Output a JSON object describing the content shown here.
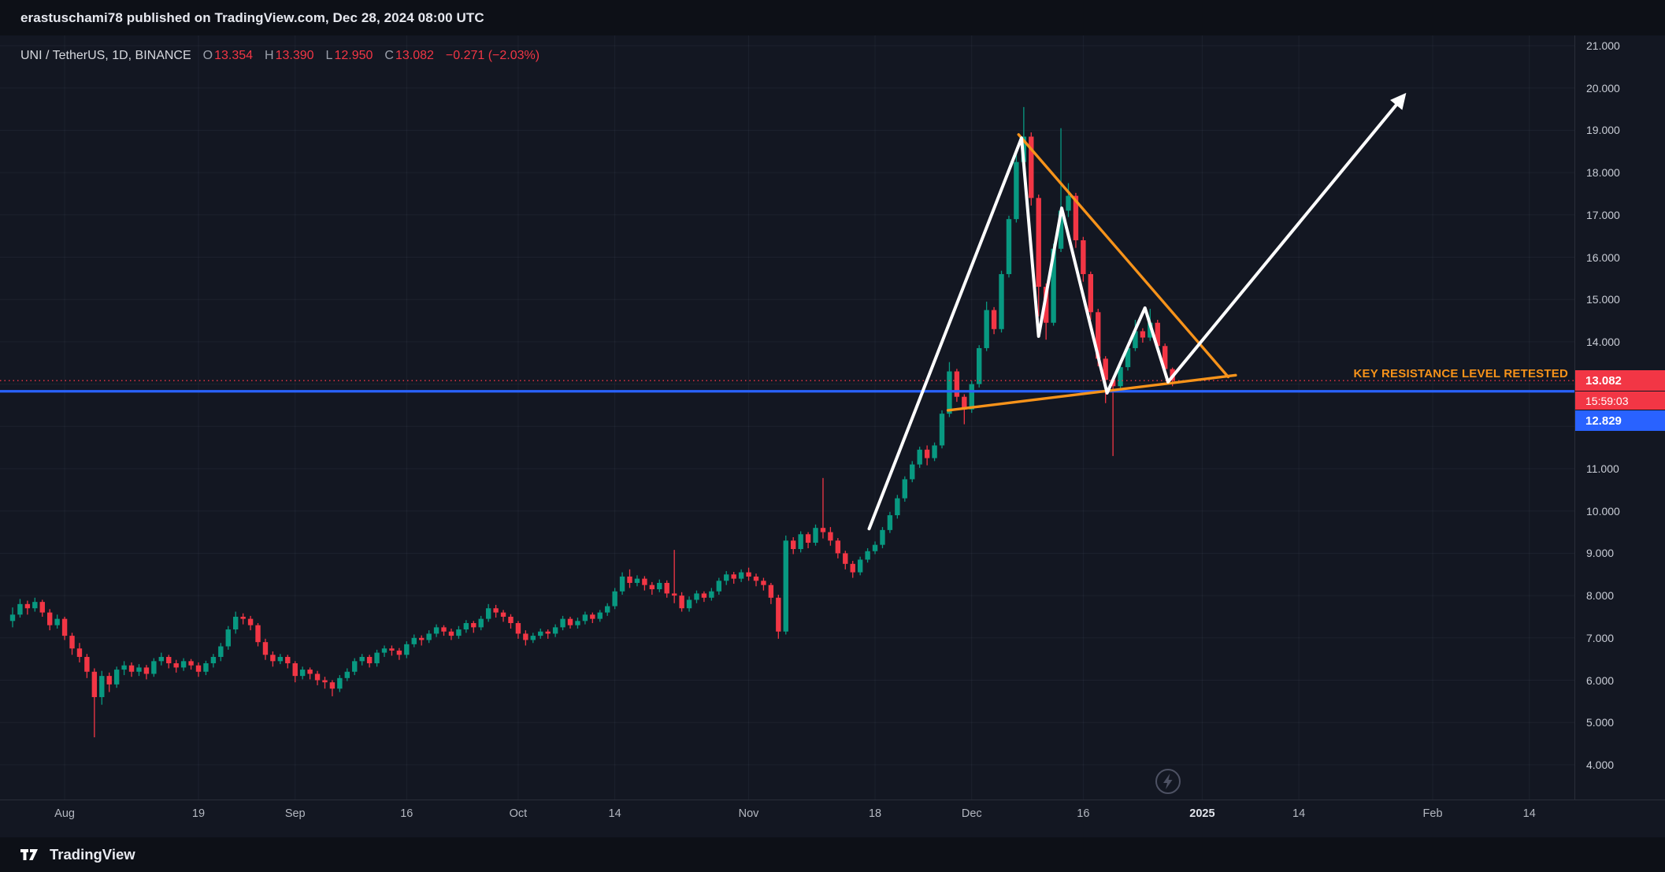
{
  "publish_bar": {
    "text": "erastuschami78 published on TradingView.com, Dec 28, 2024 08:00 UTC"
  },
  "header": {
    "symbol": "UNI / TetherUS, 1D, BINANCE",
    "ohlc": {
      "o_label": "O",
      "o": "13.354",
      "h_label": "H",
      "h": "13.390",
      "l_label": "L",
      "l": "12.950",
      "c_label": "C",
      "c": "13.082",
      "change": "−0.271 (−2.03%)"
    }
  },
  "annotations": {
    "resistance_text": "KEY RESISTANCE LEVEL RETESTED"
  },
  "price_scale": {
    "current_price_badge": "13.082",
    "countdown_badge": "15:59:03",
    "level_badge": "12.829",
    "labels": [
      {
        "text": "21.000",
        "price": 21
      },
      {
        "text": "20.000",
        "price": 20
      },
      {
        "text": "19.000",
        "price": 19
      },
      {
        "text": "18.000",
        "price": 18
      },
      {
        "text": "17.000",
        "price": 17
      },
      {
        "text": "16.000",
        "price": 16
      },
      {
        "text": "15.000",
        "price": 15
      },
      {
        "text": "14.000",
        "price": 14
      },
      {
        "text": "11.000",
        "price": 11
      },
      {
        "text": "10.000",
        "price": 10
      },
      {
        "text": "9.000",
        "price": 9
      },
      {
        "text": "8.000",
        "price": 8
      },
      {
        "text": "7.000",
        "price": 7
      },
      {
        "text": "6.000",
        "price": 6
      },
      {
        "text": "5.000",
        "price": 5
      },
      {
        "text": "4.000",
        "price": 4
      }
    ]
  },
  "footer": {
    "brand": "TradingView"
  },
  "chart_data": {
    "type": "candlestick",
    "title": "UNI / TetherUS, 1D, BINANCE",
    "interval": "1D",
    "exchange": "BINANCE",
    "start_date": "2024-07-25",
    "ylim": [
      3.2,
      21.25
    ],
    "price_gridlines": [
      4,
      5,
      6,
      7,
      8,
      9,
      10,
      11,
      12,
      13,
      14,
      15,
      16,
      17,
      18,
      19,
      20,
      21
    ],
    "time_axis": [
      {
        "text": "Aug",
        "day": 7
      },
      {
        "text": "19",
        "day": 25
      },
      {
        "text": "Sep",
        "day": 38
      },
      {
        "text": "16",
        "day": 53
      },
      {
        "text": "Oct",
        "day": 68
      },
      {
        "text": "14",
        "day": 81
      },
      {
        "text": "Nov",
        "day": 99
      },
      {
        "text": "18",
        "day": 116
      },
      {
        "text": "Dec",
        "day": 129
      },
      {
        "text": "16",
        "day": 144
      },
      {
        "text": "2025",
        "day": 160,
        "year": true
      },
      {
        "text": "14",
        "day": 173
      },
      {
        "text": "Feb",
        "day": 191
      },
      {
        "text": "14",
        "day": 204
      }
    ],
    "candle_format": [
      "open",
      "high",
      "low",
      "close"
    ],
    "candles": [
      [
        7.4,
        7.72,
        7.25,
        7.55
      ],
      [
        7.55,
        7.92,
        7.48,
        7.8
      ],
      [
        7.8,
        7.88,
        7.55,
        7.7
      ],
      [
        7.7,
        7.95,
        7.62,
        7.85
      ],
      [
        7.85,
        7.9,
        7.5,
        7.6
      ],
      [
        7.6,
        7.68,
        7.18,
        7.3
      ],
      [
        7.3,
        7.55,
        7.22,
        7.45
      ],
      [
        7.45,
        7.5,
        6.95,
        7.05
      ],
      [
        7.05,
        7.12,
        6.6,
        6.75
      ],
      [
        6.75,
        6.88,
        6.42,
        6.55
      ],
      [
        6.55,
        6.62,
        6.05,
        6.2
      ],
      [
        6.2,
        6.28,
        4.65,
        5.6
      ],
      [
        5.6,
        6.22,
        5.42,
        6.1
      ],
      [
        6.1,
        6.18,
        5.72,
        5.9
      ],
      [
        5.9,
        6.32,
        5.82,
        6.25
      ],
      [
        6.25,
        6.45,
        6.12,
        6.35
      ],
      [
        6.35,
        6.42,
        6.08,
        6.2
      ],
      [
        6.2,
        6.38,
        6.1,
        6.3
      ],
      [
        6.3,
        6.36,
        6.02,
        6.15
      ],
      [
        6.15,
        6.52,
        6.08,
        6.45
      ],
      [
        6.45,
        6.65,
        6.35,
        6.55
      ],
      [
        6.55,
        6.6,
        6.28,
        6.4
      ],
      [
        6.4,
        6.48,
        6.18,
        6.3
      ],
      [
        6.3,
        6.52,
        6.22,
        6.45
      ],
      [
        6.45,
        6.5,
        6.25,
        6.35
      ],
      [
        6.35,
        6.42,
        6.08,
        6.2
      ],
      [
        6.2,
        6.46,
        6.12,
        6.4
      ],
      [
        6.4,
        6.62,
        6.3,
        6.55
      ],
      [
        6.55,
        6.88,
        6.45,
        6.8
      ],
      [
        6.8,
        7.28,
        6.72,
        7.2
      ],
      [
        7.2,
        7.62,
        7.1,
        7.5
      ],
      [
        7.5,
        7.58,
        7.32,
        7.45
      ],
      [
        7.45,
        7.52,
        7.18,
        7.3
      ],
      [
        7.3,
        7.35,
        6.8,
        6.9
      ],
      [
        6.9,
        6.98,
        6.48,
        6.6
      ],
      [
        6.6,
        6.68,
        6.32,
        6.45
      ],
      [
        6.45,
        6.62,
        6.38,
        6.55
      ],
      [
        6.55,
        6.6,
        6.28,
        6.4
      ],
      [
        6.4,
        6.45,
        5.95,
        6.1
      ],
      [
        6.1,
        6.32,
        6.02,
        6.25
      ],
      [
        6.25,
        6.3,
        6.02,
        6.15
      ],
      [
        6.15,
        6.22,
        5.88,
        6.0
      ],
      [
        6.0,
        6.08,
        5.8,
        5.95
      ],
      [
        5.95,
        6.0,
        5.62,
        5.8
      ],
      [
        5.8,
        6.12,
        5.72,
        6.05
      ],
      [
        6.05,
        6.28,
        5.98,
        6.2
      ],
      [
        6.2,
        6.52,
        6.12,
        6.45
      ],
      [
        6.45,
        6.62,
        6.35,
        6.55
      ],
      [
        6.55,
        6.6,
        6.3,
        6.4
      ],
      [
        6.4,
        6.72,
        6.32,
        6.65
      ],
      [
        6.65,
        6.82,
        6.55,
        6.75
      ],
      [
        6.75,
        6.82,
        6.58,
        6.7
      ],
      [
        6.7,
        6.76,
        6.48,
        6.6
      ],
      [
        6.6,
        6.92,
        6.52,
        6.85
      ],
      [
        6.85,
        7.08,
        6.78,
        7.0
      ],
      [
        7.0,
        7.06,
        6.82,
        6.95
      ],
      [
        6.95,
        7.18,
        6.88,
        7.1
      ],
      [
        7.1,
        7.32,
        7.02,
        7.25
      ],
      [
        7.25,
        7.3,
        7.05,
        7.15
      ],
      [
        7.15,
        7.22,
        6.95,
        7.05
      ],
      [
        7.05,
        7.28,
        6.98,
        7.2
      ],
      [
        7.2,
        7.42,
        7.12,
        7.35
      ],
      [
        7.35,
        7.4,
        7.12,
        7.25
      ],
      [
        7.25,
        7.52,
        7.18,
        7.45
      ],
      [
        7.45,
        7.8,
        7.38,
        7.7
      ],
      [
        7.7,
        7.78,
        7.48,
        7.6
      ],
      [
        7.6,
        7.66,
        7.38,
        7.5
      ],
      [
        7.5,
        7.56,
        7.22,
        7.35
      ],
      [
        7.35,
        7.4,
        6.98,
        7.1
      ],
      [
        7.1,
        7.18,
        6.82,
        6.95
      ],
      [
        6.95,
        7.12,
        6.88,
        7.05
      ],
      [
        7.05,
        7.22,
        6.98,
        7.15
      ],
      [
        7.15,
        7.2,
        6.98,
        7.1
      ],
      [
        7.1,
        7.32,
        7.02,
        7.25
      ],
      [
        7.25,
        7.52,
        7.18,
        7.45
      ],
      [
        7.45,
        7.5,
        7.22,
        7.3
      ],
      [
        7.3,
        7.48,
        7.22,
        7.4
      ],
      [
        7.4,
        7.62,
        7.32,
        7.55
      ],
      [
        7.55,
        7.6,
        7.35,
        7.45
      ],
      [
        7.45,
        7.66,
        7.38,
        7.6
      ],
      [
        7.6,
        7.82,
        7.52,
        7.75
      ],
      [
        7.75,
        8.18,
        7.68,
        8.1
      ],
      [
        8.1,
        8.55,
        8.02,
        8.45
      ],
      [
        8.45,
        8.62,
        8.18,
        8.3
      ],
      [
        8.3,
        8.48,
        8.22,
        8.4
      ],
      [
        8.4,
        8.46,
        8.12,
        8.25
      ],
      [
        8.25,
        8.32,
        8.02,
        8.15
      ],
      [
        8.15,
        8.38,
        8.08,
        8.3
      ],
      [
        8.3,
        8.36,
        7.95,
        8.05
      ],
      [
        8.05,
        9.08,
        7.82,
        8.0
      ],
      [
        8.0,
        8.08,
        7.62,
        7.7
      ],
      [
        7.7,
        7.98,
        7.62,
        7.9
      ],
      [
        7.9,
        8.12,
        7.82,
        8.05
      ],
      [
        8.05,
        8.1,
        7.85,
        7.95
      ],
      [
        7.95,
        8.18,
        7.88,
        8.1
      ],
      [
        8.1,
        8.42,
        8.02,
        8.35
      ],
      [
        8.35,
        8.58,
        8.25,
        8.5
      ],
      [
        8.5,
        8.56,
        8.28,
        8.4
      ],
      [
        8.4,
        8.62,
        8.32,
        8.55
      ],
      [
        8.55,
        8.66,
        8.35,
        8.45
      ],
      [
        8.45,
        8.52,
        8.22,
        8.35
      ],
      [
        8.35,
        8.42,
        8.12,
        8.25
      ],
      [
        8.25,
        8.3,
        7.8,
        7.95
      ],
      [
        7.95,
        8.02,
        6.98,
        7.15
      ],
      [
        7.15,
        9.42,
        7.08,
        9.3
      ],
      [
        9.3,
        9.38,
        8.98,
        9.1
      ],
      [
        9.1,
        9.52,
        9.02,
        9.45
      ],
      [
        9.45,
        9.5,
        9.12,
        9.25
      ],
      [
        9.25,
        9.68,
        9.18,
        9.6
      ],
      [
        9.6,
        10.78,
        9.35,
        9.5
      ],
      [
        9.5,
        9.62,
        9.18,
        9.3
      ],
      [
        9.3,
        9.36,
        8.88,
        9.0
      ],
      [
        9.0,
        9.06,
        8.62,
        8.75
      ],
      [
        8.75,
        8.82,
        8.42,
        8.55
      ],
      [
        8.55,
        8.92,
        8.48,
        8.85
      ],
      [
        8.85,
        9.12,
        8.78,
        9.05
      ],
      [
        9.05,
        9.28,
        8.98,
        9.2
      ],
      [
        9.2,
        9.62,
        9.12,
        9.55
      ],
      [
        9.55,
        9.98,
        9.48,
        9.9
      ],
      [
        9.9,
        10.38,
        9.82,
        10.3
      ],
      [
        10.3,
        10.82,
        10.22,
        10.75
      ],
      [
        10.75,
        11.18,
        10.68,
        11.1
      ],
      [
        11.1,
        11.52,
        11.02,
        11.45
      ],
      [
        11.45,
        11.55,
        11.08,
        11.25
      ],
      [
        11.25,
        11.62,
        11.18,
        11.55
      ],
      [
        11.55,
        12.38,
        11.48,
        12.3
      ],
      [
        12.3,
        13.52,
        12.22,
        13.3
      ],
      [
        13.3,
        13.36,
        12.58,
        12.7
      ],
      [
        12.7,
        12.76,
        12.05,
        12.4
      ],
      [
        12.4,
        13.08,
        12.32,
        13.0
      ],
      [
        13.0,
        13.92,
        12.92,
        13.85
      ],
      [
        13.85,
        14.95,
        13.78,
        14.75
      ],
      [
        14.75,
        14.82,
        14.18,
        14.3
      ],
      [
        14.3,
        15.68,
        14.22,
        15.6
      ],
      [
        15.6,
        16.98,
        15.52,
        16.9
      ],
      [
        16.9,
        18.55,
        16.82,
        18.25
      ],
      [
        18.25,
        19.55,
        18.02,
        18.85
      ],
      [
        18.85,
        18.95,
        17.22,
        17.4
      ],
      [
        17.4,
        17.48,
        14.6,
        15.3
      ],
      [
        15.3,
        15.38,
        14.05,
        14.45
      ],
      [
        14.45,
        16.32,
        14.38,
        16.2
      ],
      [
        16.2,
        19.05,
        16.12,
        17.1
      ],
      [
        17.1,
        17.75,
        16.95,
        17.45
      ],
      [
        17.45,
        17.52,
        16.22,
        16.4
      ],
      [
        16.4,
        16.48,
        15.42,
        15.6
      ],
      [
        15.6,
        15.66,
        14.52,
        14.7
      ],
      [
        14.7,
        14.78,
        13.42,
        13.6
      ],
      [
        13.6,
        13.66,
        12.55,
        13.1
      ],
      [
        13.1,
        13.18,
        11.3,
        12.95
      ],
      [
        12.95,
        13.48,
        12.88,
        13.4
      ],
      [
        13.4,
        13.92,
        13.32,
        13.85
      ],
      [
        13.85,
        14.52,
        13.78,
        14.25
      ],
      [
        14.25,
        14.32,
        13.98,
        14.1
      ],
      [
        14.1,
        14.78,
        14.02,
        14.45
      ],
      [
        14.45,
        14.52,
        13.78,
        13.9
      ],
      [
        13.9,
        13.96,
        13.22,
        13.354
      ],
      [
        13.354,
        13.39,
        12.95,
        13.082
      ]
    ],
    "last_price": 13.082,
    "resistance_line_price": 12.829,
    "triangle": {
      "upper": [
        [
          135.3,
          18.9
        ],
        [
          163.5,
          13.17
        ]
      ],
      "lower": [
        [
          125.8,
          12.38
        ],
        [
          164.5,
          13.21
        ]
      ]
    },
    "white_path": [
      [
        115.2,
        9.58
      ],
      [
        135.7,
        18.82
      ],
      [
        138.0,
        14.13
      ],
      [
        141.1,
        17.16
      ],
      [
        147.2,
        12.79
      ],
      [
        152.3,
        14.8
      ],
      [
        155.4,
        13.05
      ],
      [
        186.9,
        19.77
      ]
    ],
    "colors": {
      "up": "#089981",
      "down": "#f23645",
      "level_line": "#2962ff",
      "drawing": "#f7931a",
      "path": "#ffffff",
      "grid": "rgba(160,170,200,0.07)"
    }
  }
}
